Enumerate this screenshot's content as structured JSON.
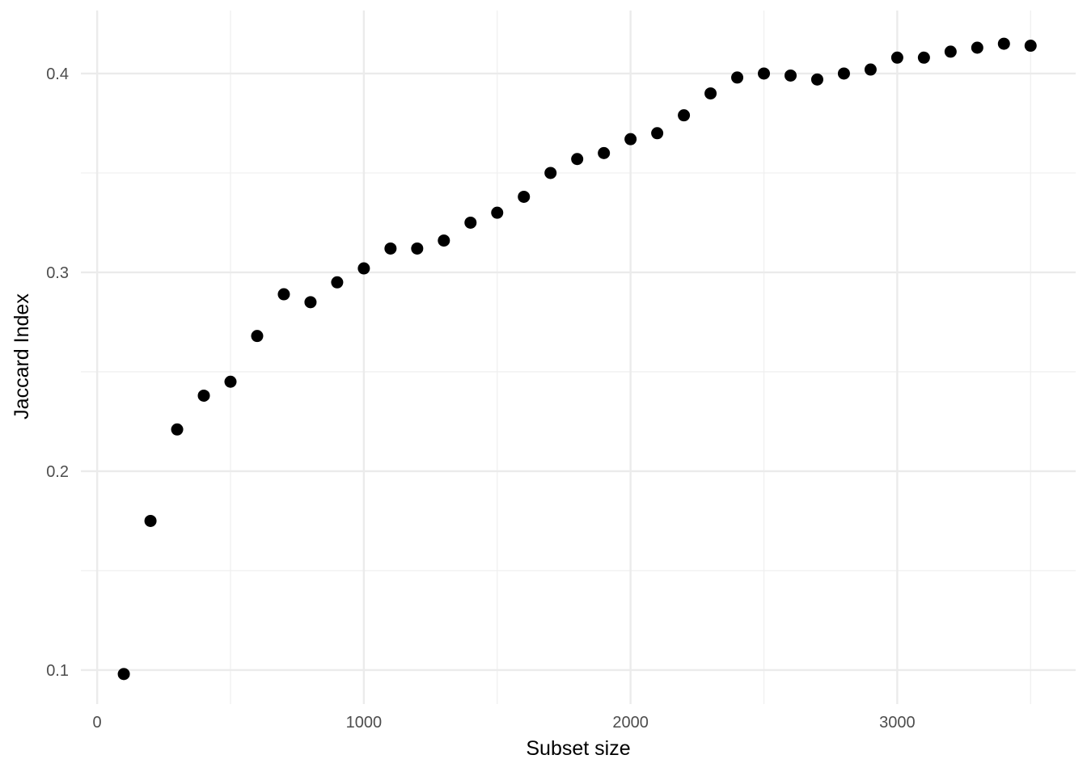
{
  "chart_data": {
    "type": "scatter",
    "title": "",
    "xlabel": "Subset size",
    "ylabel": "Jaccard Index",
    "x": [
      100,
      200,
      300,
      400,
      500,
      600,
      700,
      800,
      900,
      1000,
      1100,
      1200,
      1300,
      1400,
      1500,
      1600,
      1700,
      1800,
      1900,
      2000,
      2100,
      2200,
      2300,
      2400,
      2500,
      2600,
      2700,
      2800,
      2900,
      3000,
      3100,
      3200,
      3300,
      3400,
      3500
    ],
    "y": [
      0.098,
      0.175,
      0.221,
      0.238,
      0.245,
      0.268,
      0.289,
      0.285,
      0.295,
      0.302,
      0.312,
      0.312,
      0.316,
      0.325,
      0.33,
      0.338,
      0.35,
      0.357,
      0.36,
      0.367,
      0.37,
      0.379,
      0.39,
      0.398,
      0.4,
      0.399,
      0.397,
      0.4,
      0.402,
      0.408,
      0.408,
      0.411,
      0.413,
      0.415,
      0.414
    ],
    "xlim": [
      -61,
      3669
    ],
    "ylim": [
      0.0829,
      0.4317
    ],
    "x_tick_values": [
      0,
      1000,
      2000,
      3000
    ],
    "x_tick_labels": [
      "0",
      "1000",
      "2000",
      "3000"
    ],
    "x_minor_tick_values": [
      500,
      1500,
      2500,
      3500
    ],
    "y_tick_values": [
      0.1,
      0.2,
      0.3,
      0.4
    ],
    "y_tick_labels": [
      "0.1",
      "0.2",
      "0.3",
      "0.4"
    ],
    "y_minor_tick_values": [
      0.15,
      0.25,
      0.35
    ],
    "grid": true,
    "legend_position": "none",
    "point_color": "#000000",
    "point_radius_px": 7.5,
    "grid_major_color": "#EBEBEB",
    "grid_minor_color": "#F0F0F0",
    "tick_label_color": "#4D4D4D",
    "axis_title_color": "#000000",
    "background_color": "#FFFFFF"
  }
}
